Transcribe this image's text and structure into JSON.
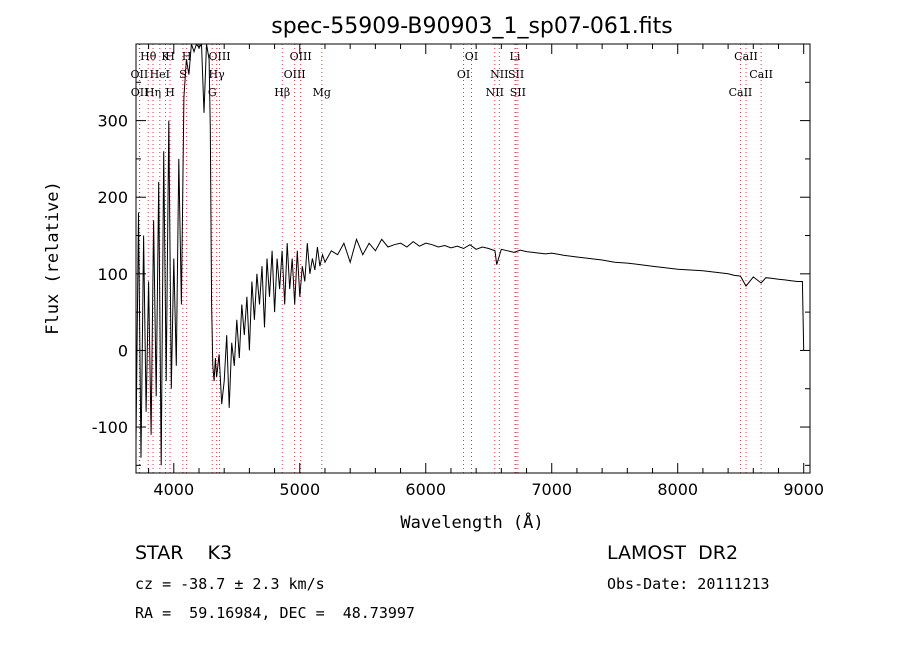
{
  "chart_data": {
    "type": "line",
    "title": "spec-55909-B90903_1_sp07-061.fits",
    "xlabel": "Wavelength (Å)",
    "ylabel": "Flux (relative)",
    "xlim": [
      3700,
      9050
    ],
    "ylim": [
      -160,
      400
    ],
    "xticks": [
      4000,
      5000,
      6000,
      7000,
      8000,
      9000
    ],
    "yticks": [
      -100,
      0,
      100,
      200,
      300
    ],
    "grid": false,
    "series": [
      {
        "x": [
          3700,
          3720,
          3740,
          3760,
          3780,
          3800,
          3820,
          3840,
          3860,
          3880,
          3900,
          3920,
          3940,
          3960,
          3980,
          4000,
          4020,
          4040,
          4060,
          4080,
          4100,
          4120,
          4140,
          4160,
          4180,
          4200,
          4220,
          4240,
          4260,
          4280,
          4290,
          4300,
          4310,
          4320,
          4330,
          4340,
          4360,
          4380,
          4400,
          4420,
          4440,
          4460,
          4480,
          4500,
          4520,
          4540,
          4560,
          4580,
          4600,
          4620,
          4640,
          4660,
          4680,
          4700,
          4720,
          4740,
          4760,
          4780,
          4800,
          4820,
          4840,
          4860,
          4880,
          4900,
          4920,
          4940,
          4960,
          4980,
          5000,
          5020,
          5040,
          5060,
          5080,
          5100,
          5120,
          5140,
          5160,
          5180,
          5200,
          5250,
          5300,
          5350,
          5400,
          5450,
          5500,
          5550,
          5600,
          5650,
          5700,
          5750,
          5800,
          5850,
          5900,
          5950,
          6000,
          6050,
          6100,
          6150,
          6200,
          6250,
          6300,
          6350,
          6400,
          6450,
          6500,
          6550,
          6563,
          6600,
          6650,
          6700,
          6750,
          6800,
          6850,
          6900,
          6950,
          7000,
          7100,
          7200,
          7300,
          7400,
          7500,
          7600,
          7700,
          7800,
          7900,
          8000,
          8100,
          8200,
          8300,
          8400,
          8450,
          8498,
          8542,
          8600,
          8662,
          8700,
          8750,
          8800,
          8850,
          8900,
          8950,
          8990,
          9000
        ],
        "y": [
          -120,
          180,
          -140,
          150,
          -80,
          90,
          -110,
          170,
          -60,
          220,
          -150,
          260,
          -40,
          300,
          -50,
          120,
          -20,
          250,
          60,
          330,
          380,
          360,
          400,
          390,
          400,
          395,
          400,
          310,
          400,
          380,
          290,
          60,
          -20,
          -40,
          -10,
          -35,
          -5,
          -70,
          -40,
          20,
          -75,
          10,
          -20,
          40,
          -10,
          60,
          20,
          70,
          0,
          90,
          40,
          100,
          60,
          110,
          30,
          120,
          70,
          130,
          50,
          120,
          80,
          130,
          60,
          140,
          80,
          120,
          60,
          130,
          70,
          110,
          90,
          140,
          100,
          120,
          105,
          135,
          110,
          125,
          115,
          130,
          125,
          140,
          115,
          145,
          125,
          140,
          130,
          145,
          135,
          138,
          140,
          135,
          142,
          136,
          140,
          138,
          135,
          137,
          134,
          136,
          133,
          138,
          132,
          135,
          133,
          130,
          112,
          132,
          130,
          128,
          131,
          129,
          128,
          127,
          126,
          127,
          124,
          122,
          120,
          118,
          115,
          114,
          112,
          110,
          108,
          106,
          105,
          104,
          102,
          100,
          98,
          97,
          84,
          96,
          88,
          95,
          94,
          93,
          92,
          91,
          90,
          90,
          0
        ]
      }
    ],
    "lines": [
      {
        "label": "Hθ",
        "x": 3797,
        "row": 0
      },
      {
        "label": "K",
        "x": 3934,
        "row": 0
      },
      {
        "label": "H",
        "x": 3970,
        "row": 0
      },
      {
        "label": "OII",
        "x": 3727,
        "row": 1
      },
      {
        "label": "HeI",
        "x": 3889,
        "row": 1
      },
      {
        "label": "S",
        "x": 4072,
        "row": 1
      },
      {
        "label": "OII",
        "x": 3729,
        "row": 2
      },
      {
        "label": "Hη",
        "x": 3835,
        "row": 2
      },
      {
        "label": "H",
        "x": 3970,
        "row": 2
      },
      {
        "label": "H",
        "x": 4102,
        "row": 0
      },
      {
        "label": "OIII",
        "x": 4363,
        "row": 0
      },
      {
        "label": "Hγ",
        "x": 4340,
        "row": 1
      },
      {
        "label": "G",
        "x": 4305,
        "row": 2
      },
      {
        "label": "OIII",
        "x": 5007,
        "row": 0
      },
      {
        "label": "OIII",
        "x": 4959,
        "row": 1
      },
      {
        "label": "Hβ",
        "x": 4861,
        "row": 2
      },
      {
        "label": "Mg",
        "x": 5175,
        "row": 2
      },
      {
        "label": "OI",
        "x": 6363,
        "row": 0
      },
      {
        "label": "OI",
        "x": 6300,
        "row": 1
      },
      {
        "label": "Li",
        "x": 6708,
        "row": 0
      },
      {
        "label": "NII",
        "x": 6584,
        "row": 1
      },
      {
        "label": "SII",
        "x": 6717,
        "row": 1
      },
      {
        "label": "NII",
        "x": 6548,
        "row": 2
      },
      {
        "label": "SII",
        "x": 6731,
        "row": 2
      },
      {
        "label": "CaII",
        "x": 8542,
        "row": 0
      },
      {
        "label": "CaII",
        "x": 8662,
        "row": 1
      },
      {
        "label": "CaII",
        "x": 8498,
        "row": 2
      }
    ]
  },
  "info": {
    "object": "STAR    K3",
    "survey": "LAMOST  DR2",
    "cz": "cz = -38.7 ± 2.3 km/s",
    "obs_date": "Obs-Date: 20111213",
    "coords": "RA =  59.16984, DEC =  48.73997"
  }
}
